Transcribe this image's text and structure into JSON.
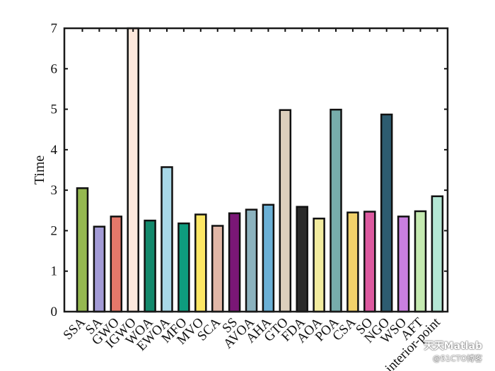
{
  "chart_data": {
    "type": "bar",
    "categories": [
      "SSA",
      "SA",
      "GWO",
      "IGWO",
      "WOA",
      "EWOA",
      "MFO",
      "MVO",
      "SCA",
      "SS",
      "AVOA",
      "AHA",
      "GTO",
      "FDA",
      "AOA",
      "POA",
      "CSA",
      "SO",
      "NGO",
      "WSO",
      "AFT",
      "interior-point"
    ],
    "values": [
      3.05,
      2.1,
      2.35,
      7.0,
      2.25,
      3.57,
      2.18,
      2.4,
      2.12,
      2.43,
      2.52,
      2.64,
      4.98,
      2.59,
      2.3,
      4.99,
      2.45,
      2.47,
      4.87,
      2.35,
      2.48,
      2.85
    ],
    "colors": [
      "#95b850",
      "#a39bd6",
      "#e5786a",
      "#fde8dc",
      "#13896c",
      "#a8d8e8",
      "#0e9c7e",
      "#fde765",
      "#e2b7a7",
      "#7a1776",
      "#8bb2be",
      "#6ab0d6",
      "#dccfbc",
      "#2a2a2a",
      "#f2ec9f",
      "#77adab",
      "#f2d16a",
      "#dd5aa0",
      "#2d5c70",
      "#c97fe0",
      "#c5eab1",
      "#b3e6d4"
    ],
    "xlabel": "",
    "ylabel": "Time",
    "ylim": [
      0,
      7
    ],
    "yticks": [
      "0",
      "1",
      "2",
      "3",
      "4",
      "5",
      "6",
      "7"
    ],
    "grid": false,
    "title": ""
  },
  "watermark": {
    "line1": "天天Matlab",
    "line2": "@51CTO博客"
  }
}
